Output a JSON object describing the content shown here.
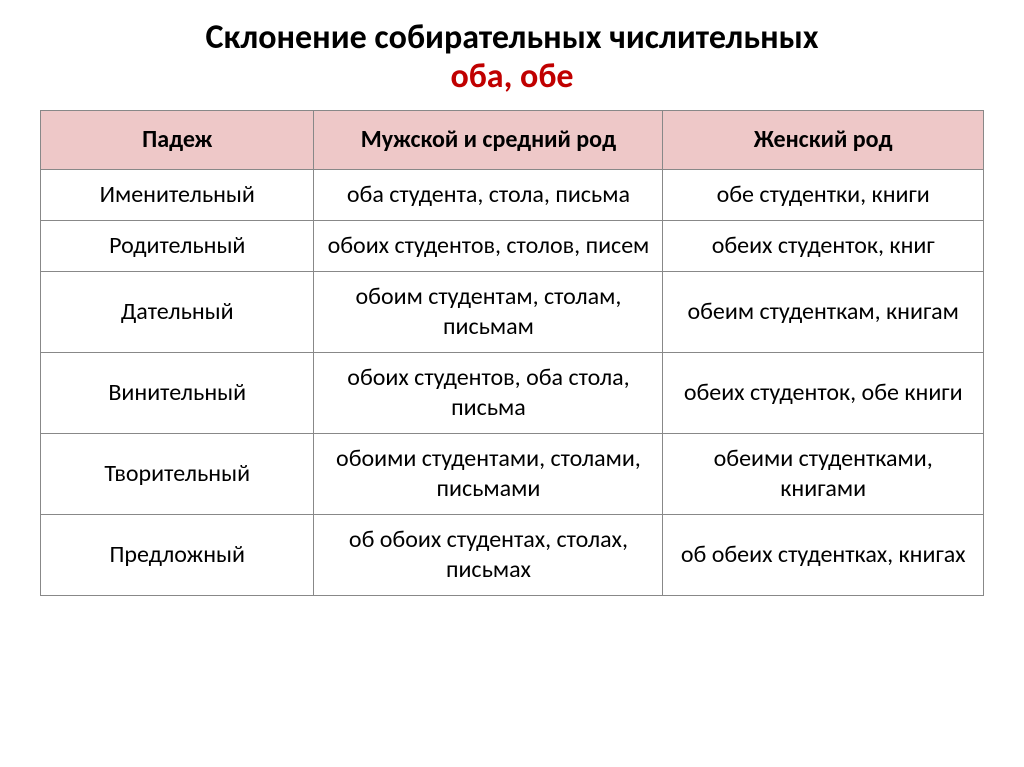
{
  "title": {
    "main": "Склонение собирательных числительных",
    "sub": "оба, обе",
    "sub_color": "#c00000"
  },
  "table": {
    "header_bg": "#eec8c8",
    "border_color": "#888888",
    "columns": [
      {
        "label": "Падеж",
        "width_pct": 29
      },
      {
        "label": "Мужской и средний род",
        "width_pct": 37
      },
      {
        "label": "Женский род",
        "width_pct": 34
      }
    ],
    "rows": [
      {
        "case": "Именительный",
        "masc_neut": "оба студента, стола, письма",
        "fem": "обе студентки, книги"
      },
      {
        "case": "Родительный",
        "masc_neut": "обоих студентов, столов, писем",
        "fem": "обеих студенток, книг"
      },
      {
        "case": "Дательный",
        "masc_neut": "обоим студентам, столам, письмам",
        "fem": "обеим студенткам, книгам"
      },
      {
        "case": "Винительный",
        "masc_neut": "обоих студентов, оба стола, письма",
        "fem": "обеих студенток, обе книги"
      },
      {
        "case": "Творительный",
        "masc_neut": "обоими студентами, столами, письмами",
        "fem": "обеими студентками, книгами"
      },
      {
        "case": "Предложный",
        "masc_neut": "об обоих студентах, столах, письмах",
        "fem": "об обеих студентках, книгах"
      }
    ]
  },
  "typography": {
    "title_fontsize": 34,
    "cell_fontsize": 24,
    "header_fontsize": 24,
    "font_family": "Calibri"
  },
  "background_color": "#ffffff"
}
